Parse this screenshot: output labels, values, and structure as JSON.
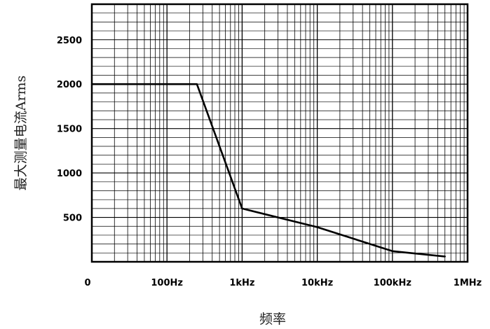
{
  "chart_data": {
    "type": "line",
    "xlabel": "频率",
    "ylabel": "最大测量电流Arms",
    "x_scale": "log",
    "x_ticks": [
      {
        "value": 10,
        "label": "0"
      },
      {
        "value": 100,
        "label": "100Hz"
      },
      {
        "value": 1000,
        "label": "1kHz"
      },
      {
        "value": 10000,
        "label": "10kHz"
      },
      {
        "value": 100000,
        "label": "100kHz"
      },
      {
        "value": 1000000,
        "label": "1MHz"
      }
    ],
    "xlim": [
      10,
      1000000
    ],
    "y_ticks": [
      500,
      1000,
      1500,
      2000,
      2500
    ],
    "ylim": [
      0,
      2900
    ],
    "grid": true,
    "series": [
      {
        "x": [
          10,
          250,
          1000,
          10000,
          100000,
          500000
        ],
        "y": [
          2000,
          2000,
          600,
          390,
          120,
          60
        ]
      }
    ]
  }
}
